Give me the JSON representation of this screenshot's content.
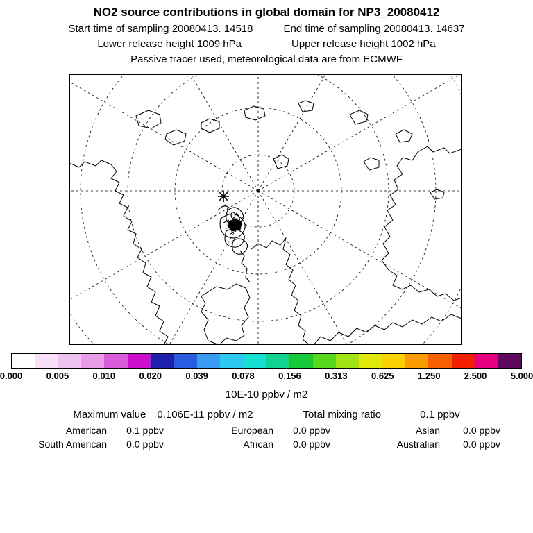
{
  "header": {
    "title": "NO2 source contributions in global domain for NP3_20080412",
    "start_time": "Start time of sampling 20080413. 14518",
    "end_time": "End time of sampling 20080413. 14637",
    "lower_release": "Lower release height 1009 hPa",
    "upper_release": "Upper release height 1002 hPa",
    "tracer_line": "Passive tracer used, meteorological data are from ECMWF"
  },
  "map": {
    "station_label": "0"
  },
  "colorbar": {
    "ticks": [
      "0.000",
      "0.005",
      "0.010",
      "0.020",
      "0.039",
      "0.078",
      "0.156",
      "0.313",
      "0.625",
      "1.250",
      "2.500",
      "5.000"
    ],
    "colors": [
      "#ffffff",
      "#f8e1f8",
      "#f0c2f0",
      "#e79ce7",
      "#d95cd9",
      "#cb0fcb",
      "#1f1fae",
      "#2a5ce2",
      "#3b9bf3",
      "#2bc9f0",
      "#15dfd2",
      "#12d291",
      "#16c838",
      "#58d81c",
      "#a0e414",
      "#e0ea0a",
      "#f8d200",
      "#f89c00",
      "#f86000",
      "#f32000",
      "#e4007e",
      "#5e085e"
    ],
    "unit": "10E-10 ppbv / m2"
  },
  "stats": {
    "max_label": "Maximum value",
    "max_value": "0.106E-11 ppbv / m2",
    "total_label": "Total mixing ratio",
    "total_value": "0.1 ppbv"
  },
  "contributions": {
    "rows": [
      [
        {
          "region": "American",
          "value": "0.1 ppbv"
        },
        {
          "region": "European",
          "value": "0.0 ppbv"
        },
        {
          "region": "Asian",
          "value": "0.0 ppbv"
        }
      ],
      [
        {
          "region": "South American",
          "value": "0.0 ppbv"
        },
        {
          "region": "African",
          "value": "0.0 ppbv"
        },
        {
          "region": "Australian",
          "value": "0.0 ppbv"
        }
      ]
    ]
  },
  "chart_data": {
    "type": "heatmap",
    "title": "NO2 source contributions in global domain for NP3_20080412",
    "map_projection": "north polar stereographic",
    "station": "NP3_20080412",
    "station_marker_label": "0",
    "start_time": "20080413. 14518",
    "end_time": "20080413. 14637",
    "lower_release_height": "1009 hPa",
    "upper_release_height": "1002 hPa",
    "tracer": "Passive tracer used, meteorological data are from ECMWF",
    "colorbar_tick_values": [
      0.0,
      0.005,
      0.01,
      0.02,
      0.039,
      0.078,
      0.156,
      0.313,
      0.625,
      1.25,
      2.5,
      5.0
    ],
    "colorbar_unit": "10E-10 ppbv / m2",
    "maximum_value": "0.106E-11 ppbv / m2",
    "total_mixing_ratio": "0.1 ppbv",
    "contributions_ppbv": {
      "American": 0.1,
      "European": 0.0,
      "Asian": 0.0,
      "South American": 0.0,
      "African": 0.0,
      "Australian": 0.0
    }
  }
}
